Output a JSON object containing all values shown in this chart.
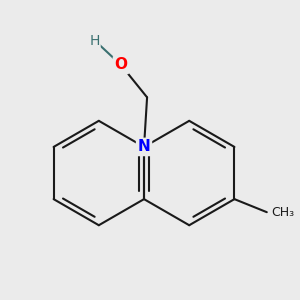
{
  "background_color": "#ebebeb",
  "bond_color": "#1a1a1a",
  "N_color": "#0000ff",
  "O_color": "#ff0000",
  "H_color": "#3a7070",
  "bond_width": 1.5,
  "figsize": [
    3.0,
    3.0
  ],
  "dpi": 100,
  "xlim": [
    -2.3,
    2.3
  ],
  "ylim": [
    -2.6,
    1.9
  ]
}
